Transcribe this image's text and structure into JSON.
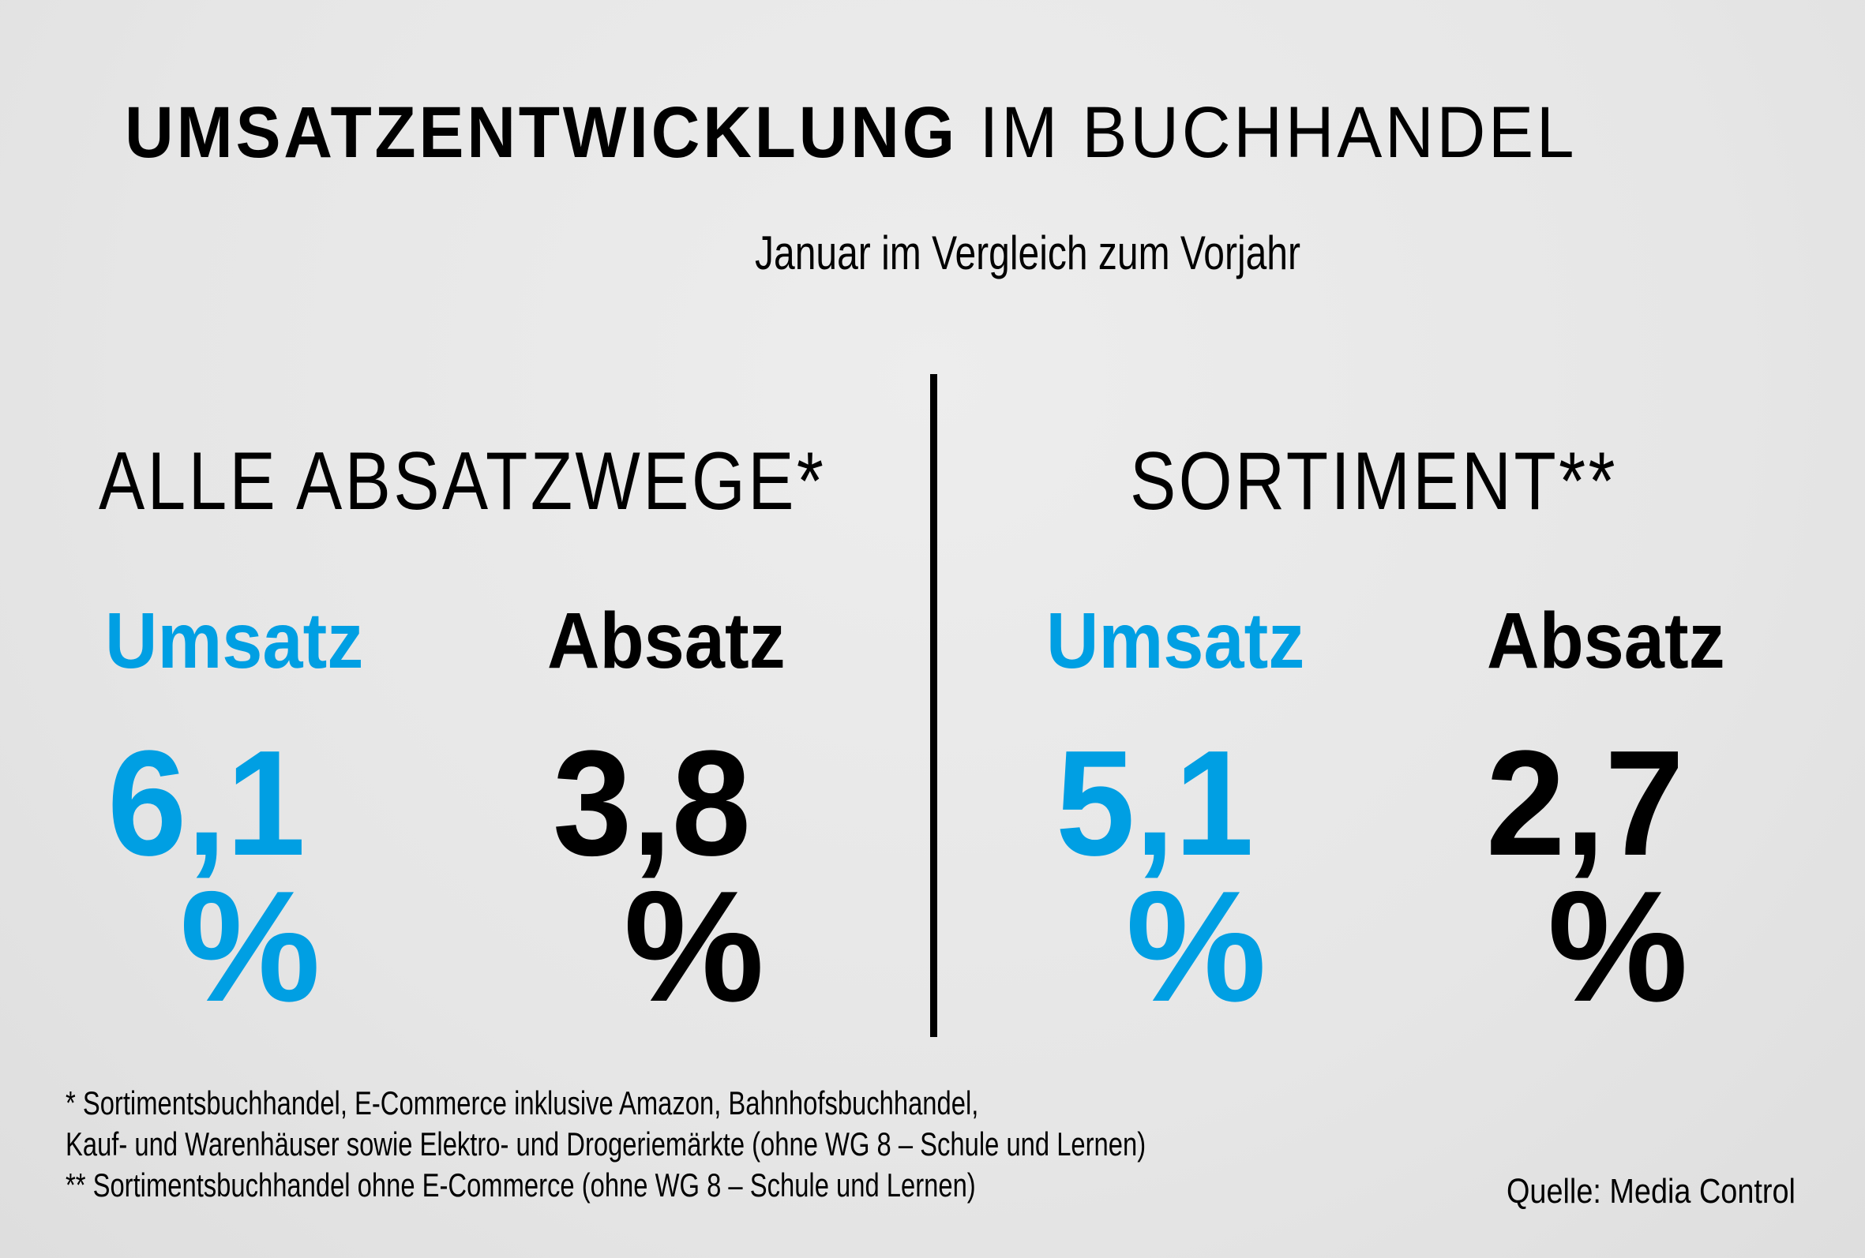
{
  "header": {
    "title_bold": "UMSATZENTWICKLUNG",
    "title_light": "IM BUCHHANDEL",
    "subtitle": "Januar im Vergleich zum Vorjahr"
  },
  "colors": {
    "accent": "#009fe3",
    "text": "#000000",
    "background": "#e8e8e8"
  },
  "sections": [
    {
      "heading": "ALLE ABSATZWEGE*",
      "metrics": [
        {
          "label": "Umsatz",
          "value": "6,1",
          "unit": "%",
          "color": "#009fe3"
        },
        {
          "label": "Absatz",
          "value": "3,8",
          "unit": "%",
          "color": "#000000"
        }
      ]
    },
    {
      "heading": "SORTIMENT**",
      "metrics": [
        {
          "label": "Umsatz",
          "value": "5,1",
          "unit": "%",
          "color": "#009fe3"
        },
        {
          "label": "Absatz",
          "value": "2,7",
          "unit": "%",
          "color": "#000000"
        }
      ]
    }
  ],
  "footnotes": [
    "* Sortimentsbuchhandel, E-Commerce inklusive Amazon, Bahnhofsbuchhandel,",
    "Kauf- und Warenhäuser sowie Elektro- und Drogeriemärkte (ohne WG 8 – Schule und Lernen)",
    "** Sortimentsbuchhandel ohne E-Commerce (ohne WG 8 – Schule und Lernen)"
  ],
  "source": "Quelle: Media Control"
}
